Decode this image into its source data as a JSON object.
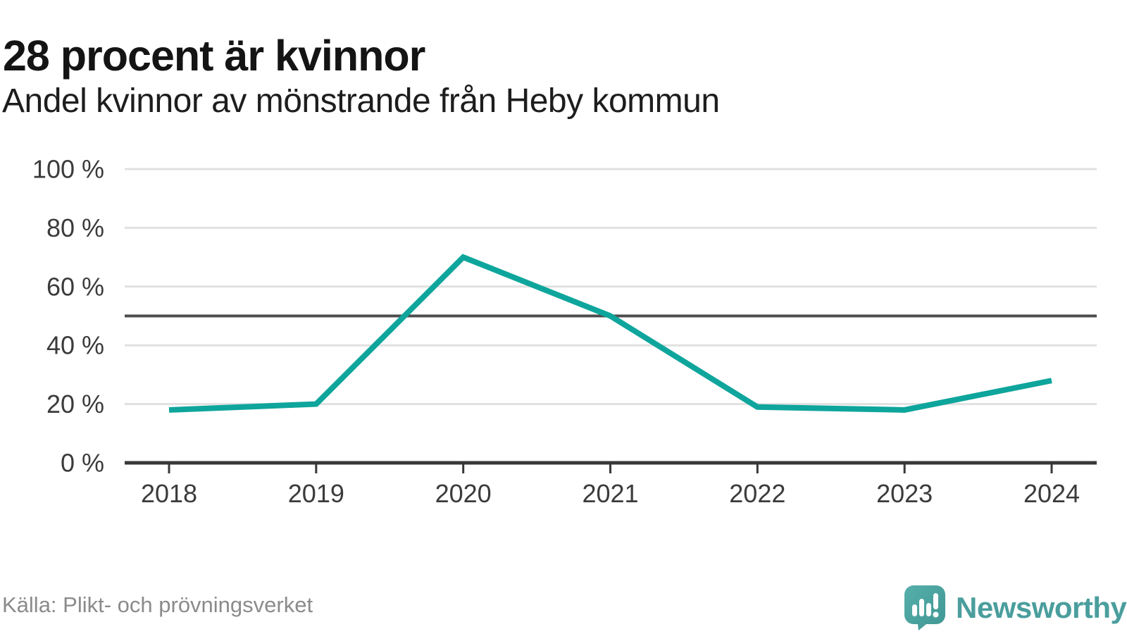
{
  "header": {
    "title": "28 procent är kvinnor",
    "subtitle": "Andel kvinnor av mönstrande från Heby kommun"
  },
  "footer": {
    "source": "Källa: Plikt- och prövningsverket",
    "brand": "Newsworthy"
  },
  "chart_data": {
    "type": "line",
    "title": "28 procent är kvinnor",
    "subtitle": "Andel kvinnor av mönstrande från Heby kommun",
    "x": [
      2018,
      2019,
      2020,
      2021,
      2022,
      2023,
      2024
    ],
    "series": [
      {
        "name": "Andel kvinnor av mönstrande",
        "values": [
          18,
          20,
          70,
          50,
          19,
          18,
          28
        ]
      }
    ],
    "unit": "%",
    "ylim": [
      0,
      100
    ],
    "yticks": [
      0,
      20,
      40,
      60,
      80,
      100
    ],
    "ytick_labels": [
      "0 %",
      "20 %",
      "40 %",
      "60 %",
      "80 %",
      "100 %"
    ],
    "reference_line": 50,
    "grid": true,
    "legend": "none",
    "colors": {
      "line": "#0ea59c",
      "gridline": "#e1e1e1",
      "reference_line": "#4d4d4d",
      "axis": "#383838",
      "tick_label": "#3b3b3b",
      "logo_teal": "#4a9e9d",
      "logo_bubble_light": "#56afab",
      "logo_bubble_dark": "#3f9693"
    }
  }
}
